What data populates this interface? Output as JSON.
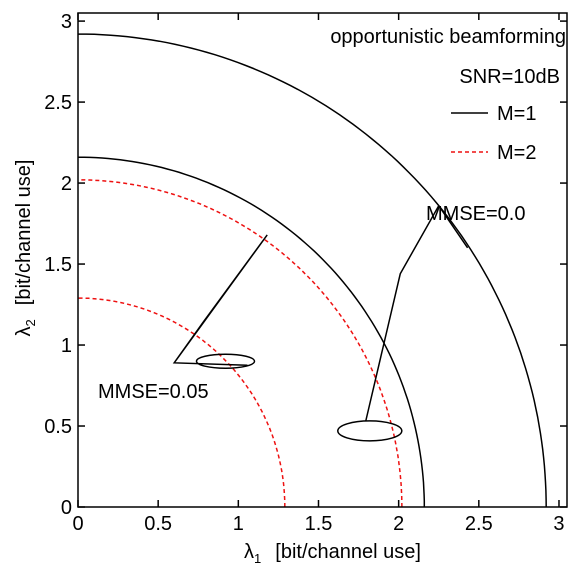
{
  "chart_data": {
    "type": "line",
    "xlabel_symbol": "λ",
    "xlabel_sub": "1",
    "xlabel_unit": "[bit/channel use]",
    "ylabel_symbol": "λ",
    "ylabel_sub": "2",
    "ylabel_unit": "[bit/channel use]",
    "xlim": [
      0,
      3.05
    ],
    "ylim": [
      0,
      3.05
    ],
    "xticks": [
      0,
      0.5,
      1,
      1.5,
      2,
      2.5,
      3
    ],
    "yticks": [
      0,
      0.5,
      1,
      1.5,
      2,
      2.5,
      3
    ],
    "xtick_labels": [
      "0",
      "0.5",
      "1",
      "1.5",
      "2",
      "2.5",
      "3"
    ],
    "ytick_labels": [
      "0",
      "0.5",
      "1",
      "1.5",
      "2",
      "2.5",
      "3"
    ],
    "grid": false,
    "legend_position": "top-right",
    "legend_header": [
      "opportunistic beamforming",
      "SNR=10dB"
    ],
    "series": [
      {
        "name": "M=1",
        "group": "MMSE=0.0",
        "style": "solid",
        "color": "#000000",
        "x_intercept": 2.92,
        "y_intercept": 2.92
      },
      {
        "name": "M=1",
        "group": "MMSE=0.05",
        "style": "solid",
        "color": "#000000",
        "x_intercept": 2.16,
        "y_intercept": 2.16
      },
      {
        "name": "M=2",
        "group": "MMSE=0.0",
        "style": "dashed",
        "color": "#ee1111",
        "x_intercept": 2.02,
        "y_intercept": 2.02
      },
      {
        "name": "M=2",
        "group": "MMSE=0.05",
        "style": "dashed",
        "color": "#ee1111",
        "x_intercept": 1.29,
        "y_intercept": 1.29
      }
    ],
    "annotations": [
      {
        "text": "MMSE=0.0",
        "ellipse_center": [
          1.82,
          0.47
        ]
      },
      {
        "text": "MMSE=0.05",
        "ellipse_center": [
          0.92,
          0.9
        ]
      }
    ]
  }
}
